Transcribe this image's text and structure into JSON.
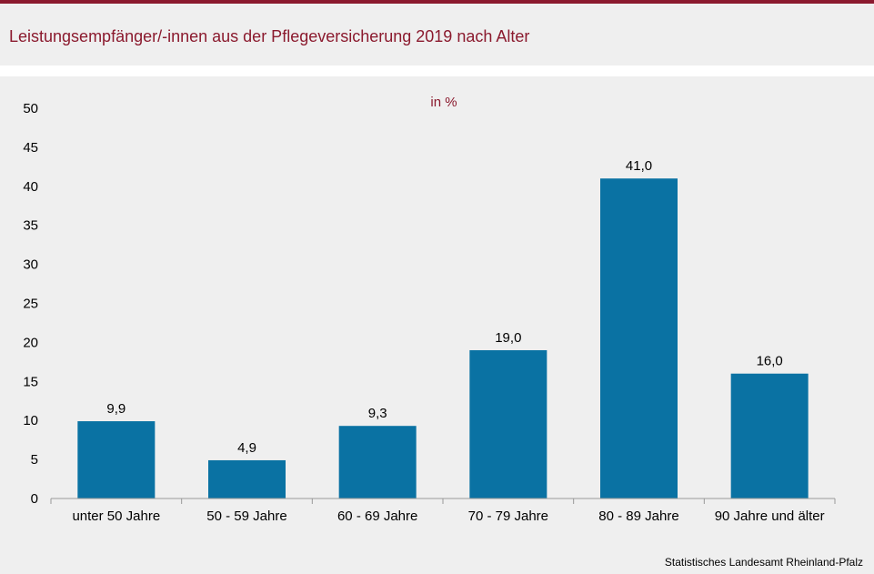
{
  "title": "Leistungsempfänger/-innen aus der Pflegeversicherung 2019 nach Alter",
  "source": "Statistisches Landesamt Rheinland-Pfalz",
  "chart_data": {
    "type": "bar",
    "title": "Leistungsempfänger/-innen aus der Pflegeversicherung 2019 nach Alter",
    "unit_label": "in %",
    "categories": [
      "unter 50 Jahre",
      "50 - 59 Jahre",
      "60 - 69 Jahre",
      "70 - 79 Jahre",
      "80 - 89 Jahre",
      "90 Jahre und älter"
    ],
    "values": [
      9.9,
      4.9,
      9.3,
      19.0,
      41.0,
      16.0
    ],
    "value_labels": [
      "9,9",
      "4,9",
      "9,3",
      "19,0",
      "41,0",
      "16,0"
    ],
    "yticks": [
      0,
      5,
      10,
      15,
      20,
      25,
      30,
      35,
      40,
      45,
      50
    ],
    "ylim": [
      0,
      50
    ],
    "bar_color": "#0a72a3",
    "grid": false,
    "legend": "none"
  }
}
